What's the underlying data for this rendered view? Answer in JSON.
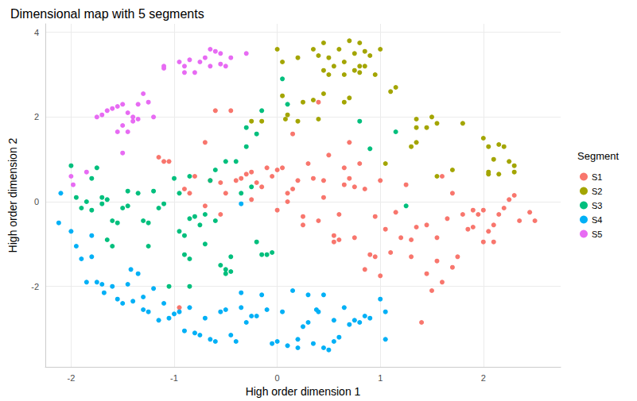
{
  "chart_data": {
    "type": "scatter",
    "title": "Dimensional map with 5 segments",
    "x_label": "High order dimension 1",
    "y_label": "High order dimension 2",
    "legend_title": "Segment",
    "legend": "right",
    "grid": true,
    "marker": "circle",
    "xlim": [
      -2.25,
      2.75
    ],
    "ylim": [
      -3.9,
      4.2
    ],
    "xticks": [
      -2,
      -1,
      0,
      1,
      2
    ],
    "yticks": [
      -2,
      0,
      2,
      4
    ],
    "series": [
      {
        "name": "S1",
        "color": "#F8766D",
        "x": [
          -1.15,
          -1.1,
          -1.05,
          -0.95,
          -0.9,
          -0.85,
          -0.8,
          -0.7,
          -0.65,
          -0.6,
          -0.55,
          -0.5,
          -0.45,
          -0.4,
          -0.35,
          -0.3,
          -0.25,
          -0.2,
          -0.15,
          -0.1,
          -0.05,
          0.0,
          0.05,
          0.0,
          0.1,
          0.15,
          0.15,
          0.2,
          0.25,
          0.3,
          0.35,
          0.4,
          0.45,
          0.45,
          0.5,
          0.55,
          0.6,
          0.65,
          0.65,
          0.7,
          0.75,
          0.7,
          0.75,
          0.8,
          0.85,
          0.9,
          0.95,
          1.0,
          1.05,
          1.1,
          1.15,
          1.2,
          1.25,
          1.3,
          1.35,
          1.4,
          1.45,
          1.5,
          1.55,
          1.6,
          1.65,
          1.7,
          1.75,
          1.8,
          1.85,
          1.9,
          1.95,
          2.0,
          2.05,
          2.1,
          2.15,
          2.2,
          2.25,
          2.3,
          2.35,
          2.45,
          2.5,
          1.6,
          1.45,
          0.25,
          0.55,
          0.6,
          1.0,
          0.85,
          0.95,
          1.7,
          1.9,
          -0.7,
          -0.55,
          0.4,
          0.1,
          -0.25,
          1.3,
          1.55,
          2.0,
          2.1
        ],
        "values": [
          1.05,
          0.95,
          0.95,
          -2.5,
          0.3,
          0.2,
          0.6,
          -0.1,
          0.5,
          2.15,
          -0.3,
          0.2,
          2.15,
          0.5,
          0.55,
          0.65,
          0.7,
          0.45,
          0.35,
          0.8,
          0.6,
          0.75,
          0.8,
          -0.2,
          0.2,
          0.3,
          1.6,
          0.5,
          -0.35,
          0.9,
          0.55,
          2.35,
          0.1,
          0.5,
          1.1,
          -0.8,
          -0.9,
          0.4,
          0.8,
          0.55,
          0.35,
          1.4,
          -0.85,
          0.9,
          0.3,
          -1.25,
          -0.35,
          0.5,
          -0.65,
          -1.2,
          -0.25,
          -0.85,
          0.4,
          -0.9,
          -0.6,
          -2.85,
          -1.7,
          -2.1,
          -1.4,
          -1.9,
          -0.4,
          -1.55,
          -1.3,
          -0.3,
          -0.65,
          -0.6,
          -0.3,
          -0.2,
          -0.7,
          -0.55,
          -0.3,
          -0.15,
          0.05,
          0.15,
          -0.45,
          -0.25,
          -0.45,
          0.6,
          -0.55,
          -0.55,
          -0.95,
          -0.3,
          -1.75,
          -1.6,
          -1.3,
          0.2,
          -0.2,
          1.4,
          0.45,
          -0.45,
          0.0,
          0.05,
          -1.3,
          -0.85,
          -0.95,
          -0.95
        ]
      },
      {
        "name": "S2",
        "color": "#A3A500",
        "x": [
          0,
          0.05,
          0.2,
          0.35,
          0.45,
          0.5,
          0.55,
          0.6,
          0.65,
          0.7,
          0.75,
          0.75,
          0.8,
          0.85,
          0.85,
          0.9,
          0.95,
          0.65,
          0.45,
          0.5,
          0.4,
          1.0,
          0.8,
          0.7,
          0.65,
          0.45,
          0.35,
          0.25,
          0.05,
          0.1,
          0.08,
          -0.15,
          -0.25,
          0.2,
          0.4,
          1.1,
          1.15,
          1.35,
          1.35,
          1.45,
          1.5,
          1.55,
          1.3,
          1.35,
          1.55,
          1.7,
          1.8,
          2.0,
          2.05,
          2.1,
          2.15,
          2.2,
          2.25,
          2.3,
          2.3,
          2.05,
          2.15,
          2.05,
          1.05,
          0.8
        ],
        "values": [
          3.6,
          3.3,
          3.4,
          3.6,
          3.75,
          3.4,
          3.2,
          3.6,
          3.3,
          3.8,
          3.5,
          3.1,
          3.75,
          3.55,
          3.2,
          3.45,
          3.0,
          3.0,
          3.1,
          3.0,
          3.45,
          3.6,
          3.05,
          2.45,
          2.35,
          2.55,
          2.4,
          2.35,
          2.5,
          2.05,
          1.95,
          1.9,
          1.9,
          1.9,
          1.95,
          2.6,
          2.7,
          1.95,
          1.75,
          1.75,
          2.0,
          1.85,
          1.3,
          1.4,
          0.6,
          0.75,
          1.85,
          1.5,
          1.3,
          1.0,
          1.35,
          1.3,
          0.95,
          0.7,
          0.85,
          0.65,
          0.65,
          0.7,
          0.9,
          3.2
        ]
      },
      {
        "name": "S3",
        "color": "#00BF7D",
        "x": [
          -2.0,
          -1.95,
          -1.9,
          -1.85,
          -1.8,
          -1.8,
          -1.75,
          -1.7,
          -1.65,
          -1.7,
          -1.65,
          -1.6,
          -1.55,
          -1.5,
          -1.45,
          -1.45,
          -1.35,
          -1.3,
          -1.25,
          -1.25,
          -1.2,
          -1.15,
          -1.1,
          -1.05,
          -1.0,
          -0.95,
          -0.9,
          -0.9,
          -0.85,
          -0.85,
          -0.8,
          -0.75,
          -0.7,
          -0.7,
          -0.65,
          -0.6,
          -0.6,
          -0.55,
          -0.5,
          -0.45,
          -0.5,
          -0.45,
          -0.4,
          -0.35,
          -0.3,
          -0.3,
          -0.25,
          -0.2,
          -0.15,
          -0.1,
          -0.15,
          -0.05,
          0.05,
          0.1,
          0.8,
          0.9,
          1.15,
          1.25,
          -0.95,
          -0.85,
          -0.2,
          -0.5,
          -1.6,
          -0.85
        ],
        "values": [
          0.85,
          0.1,
          -0.15,
          0.0,
          -0.2,
          0.55,
          0.8,
          0.1,
          0.05,
          -0.05,
          -0.9,
          -0.45,
          -0.5,
          -0.15,
          -0.1,
          0.25,
          0.2,
          -0.45,
          -0.5,
          -1.05,
          0.25,
          -0.15,
          -0.05,
          -2.0,
          0.55,
          0.2,
          -0.8,
          -1.25,
          -2.0,
          0.6,
          -0.35,
          -0.55,
          -1.0,
          -0.3,
          0.5,
          -0.45,
          0.75,
          -1.5,
          -1.6,
          -1.3,
          -1.7,
          -1.65,
          0.95,
          0.2,
          1.3,
          1.75,
          0.35,
          -0.95,
          -1.25,
          -1.25,
          2.15,
          -1.2,
          2.9,
          2.3,
          1.9,
          1.25,
          1.65,
          -0.1,
          -0.7,
          -0.4,
          1.6,
          0.95,
          -1.05,
          -1.35
        ]
      },
      {
        "name": "S4",
        "color": "#00B0F6",
        "x": [
          -2.1,
          -2.12,
          -2.0,
          -1.95,
          -1.9,
          -1.85,
          -1.8,
          -1.8,
          -1.75,
          -1.7,
          -1.68,
          -1.6,
          -1.55,
          -1.5,
          -1.45,
          -1.42,
          -1.4,
          -1.35,
          -1.3,
          -1.3,
          -1.25,
          -1.2,
          -1.15,
          -1.1,
          -1.05,
          -1.0,
          -0.95,
          -0.9,
          -0.85,
          -0.8,
          -0.75,
          -0.7,
          -0.65,
          -0.6,
          -0.55,
          -0.5,
          -0.45,
          -0.4,
          -0.35,
          -0.35,
          -0.3,
          -0.25,
          -0.2,
          -0.15,
          -0.1,
          -0.05,
          0.0,
          0.05,
          0.1,
          0.15,
          0.2,
          0.25,
          0.3,
          0.35,
          0.3,
          0.38,
          0.4,
          0.45,
          0.5,
          0.55,
          0.6,
          0.65,
          0.7,
          0.75,
          0.8,
          0.85,
          1.0,
          1.05,
          1.05,
          -0.35,
          0.45,
          0.2,
          0.55,
          0.9
        ],
        "values": [
          0.2,
          -0.5,
          -0.7,
          -1.05,
          -1.35,
          -1.9,
          -0.8,
          -1.3,
          -1.9,
          -1.95,
          -2.15,
          -2.0,
          -2.3,
          -2.4,
          -1.95,
          -1.6,
          -2.35,
          -1.7,
          -2.25,
          -2.55,
          -2.6,
          -2.05,
          -2.8,
          -2.4,
          -2.75,
          -2.65,
          -2.6,
          -3.05,
          -2.5,
          -3.1,
          -3.15,
          -2.75,
          -3.25,
          -3.3,
          -2.6,
          -2.55,
          -3.15,
          -3.3,
          -2.15,
          -2.5,
          -2.85,
          -2.7,
          -2.7,
          -2.2,
          -2.55,
          -3.35,
          -3.3,
          -2.6,
          -3.4,
          -2.1,
          -3.25,
          -2.95,
          -2.85,
          -3.35,
          -2.2,
          -2.55,
          -2.6,
          -3.45,
          -3.5,
          -2.8,
          -3.2,
          -2.5,
          -2.9,
          -2.8,
          -2.85,
          -2.7,
          -2.3,
          -2.6,
          -3.25,
          -0.05,
          -2.2,
          -3.45,
          -3.3,
          -2.75
        ]
      },
      {
        "name": "S5",
        "color": "#E76BF3",
        "x": [
          -2.0,
          -1.98,
          -1.85,
          -1.75,
          -1.7,
          -1.65,
          -1.6,
          -1.55,
          -1.5,
          -1.45,
          -1.4,
          -1.35,
          -1.3,
          -1.25,
          -1.2,
          -1.55,
          -1.5,
          -1.45,
          -1.4,
          -1.35,
          -1.5,
          -1.1,
          -1.1,
          -0.95,
          -0.9,
          -0.9,
          -0.85,
          -0.8,
          -0.75,
          -0.7,
          -0.65,
          -0.6,
          -0.55,
          -0.5,
          -0.45,
          -0.3,
          -0.65,
          -0.55
        ],
        "values": [
          0.6,
          0.4,
          0.7,
          2.0,
          2.05,
          2.15,
          2.2,
          2.25,
          2.3,
          2.1,
          2.0,
          2.3,
          2.55,
          2.35,
          2.0,
          1.65,
          1.8,
          1.65,
          1.9,
          1.95,
          1.15,
          3.15,
          3.2,
          3.3,
          3.05,
          3.2,
          3.35,
          3.05,
          3.3,
          3.4,
          3.6,
          3.55,
          3.5,
          3.2,
          3.4,
          3.5,
          3.2,
          3.25
        ]
      }
    ]
  }
}
